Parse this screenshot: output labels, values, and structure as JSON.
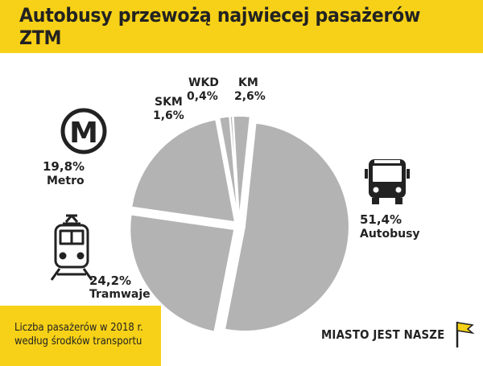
{
  "header": {
    "title": "Autobusy przewożą najwiecej pasażerów ZTM"
  },
  "footer": {
    "line1": "Liczba pasażerów w 2018 r.",
    "line2": "według środków transportu"
  },
  "brand": {
    "name": "MIASTO JEST NASZE"
  },
  "colors": {
    "accent": "#f7d117",
    "slice": "#b3b3b3",
    "slice_stroke": "#ffffff",
    "text": "#222222"
  },
  "icons": [
    "metro-icon",
    "bus-icon",
    "tram-icon",
    "flag-icon"
  ],
  "chart_data": {
    "type": "pie",
    "title": "Autobusy przewożą najwiecej pasażerów ZTM",
    "slices": [
      {
        "name": "Autobusy",
        "value": 51.4,
        "label": "51,4%"
      },
      {
        "name": "Tramwaje",
        "value": 24.2,
        "label": "24,2%"
      },
      {
        "name": "Metro",
        "value": 19.8,
        "label": "19,8%"
      },
      {
        "name": "SKM",
        "value": 1.6,
        "label": "1,6%"
      },
      {
        "name": "WKD",
        "value": 0.4,
        "label": "0,4%"
      },
      {
        "name": "KM",
        "value": 2.6,
        "label": "2,6%"
      }
    ],
    "exploded": true
  }
}
